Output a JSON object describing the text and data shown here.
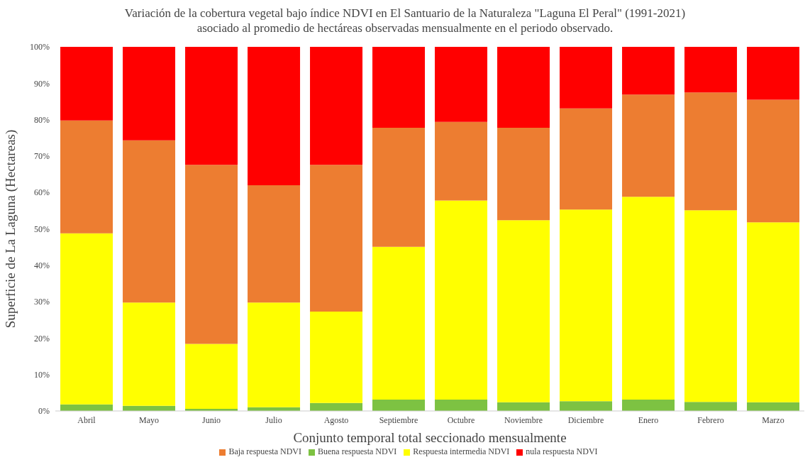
{
  "chart_data": {
    "type": "bar",
    "stacked": true,
    "title": "Variación de la cobertura vegetal bajo índice NDVI en El Santuario de la Naturaleza \"Laguna El Peral\" (1991-2021)",
    "subtitle": "asociado al promedio de hectáreas observadas mensualmente en el periodo observado.",
    "xlabel": "Conjunto temporal total seccionado mensualmente",
    "ylabel": "Superficie de La Laguna (Hectareas)",
    "categories": [
      "Abril",
      "Mayo",
      "Junio",
      "Julio",
      "Agosto",
      "Septiembre",
      "Octubre",
      "Noviembre",
      "Diciembre",
      "Enero",
      "Febrero",
      "Marzo"
    ],
    "series": [
      {
        "name": "Buena respuesta NDVI",
        "color": "#7dc242",
        "values": [
          1.8,
          1.4,
          0.6,
          1.0,
          2.2,
          3.1,
          3.1,
          2.4,
          2.7,
          3.1,
          2.5,
          2.4
        ]
      },
      {
        "name": "Respuesta intermedia NDVI",
        "color": "#ffff00",
        "values": [
          47.0,
          28.4,
          17.8,
          28.8,
          25.1,
          42.0,
          54.7,
          50.0,
          52.6,
          55.7,
          52.6,
          49.4
        ]
      },
      {
        "name": "Baja respuesta NDVI",
        "color": "#ed7d31",
        "values": [
          31.0,
          44.5,
          49.2,
          32.2,
          40.3,
          32.7,
          21.6,
          25.4,
          27.8,
          28.1,
          32.4,
          33.7
        ]
      },
      {
        "name": "nula respuesta NDVI",
        "color": "#ff0000",
        "values": [
          20.2,
          25.7,
          32.4,
          38.0,
          32.4,
          22.2,
          20.6,
          22.2,
          16.9,
          13.1,
          12.5,
          14.5
        ]
      }
    ],
    "ylim": [
      0,
      100
    ],
    "yticks": [
      {
        "value": 0,
        "label": "0%"
      },
      {
        "value": 10,
        "label": "10%"
      },
      {
        "value": 20,
        "label": "20%"
      },
      {
        "value": 30,
        "label": "30%"
      },
      {
        "value": 40,
        "label": "40%"
      },
      {
        "value": 50,
        "label": "50%"
      },
      {
        "value": 60,
        "label": "60%"
      },
      {
        "value": 70,
        "label": "70%"
      },
      {
        "value": 80,
        "label": "80%"
      },
      {
        "value": 90,
        "label": "90%"
      },
      {
        "value": 100,
        "label": "100%"
      }
    ],
    "grid": false,
    "legend": "bottom"
  }
}
